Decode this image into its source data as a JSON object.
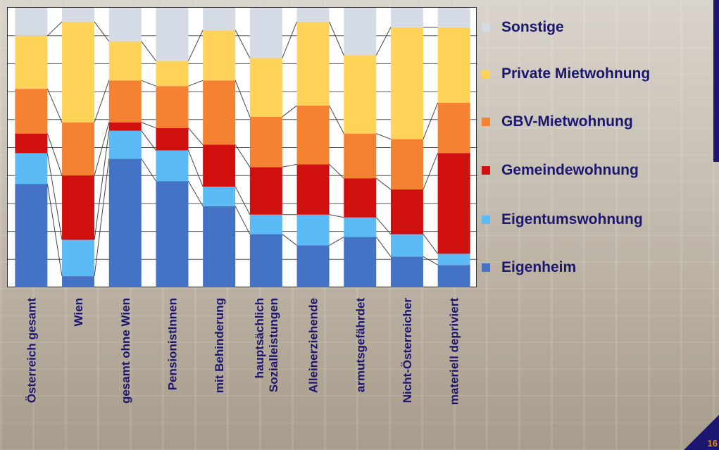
{
  "page_number": "16",
  "colors": {
    "Eigenheim": "#4472c4",
    "Eigentumswohnung": "#5cbbf5",
    "Gemeindewohnung": "#d00f0f",
    "GBV-Mietwohnung": "#f58232",
    "Private Mietwohnung": "#ffd357",
    "Sonstige": "#d4dbe5"
  },
  "legend": [
    {
      "label": "Sonstige",
      "color": "#d4dbe5"
    },
    {
      "label": "Private Mietwohnung",
      "color": "#ffd357"
    },
    {
      "label": "GBV-Mietwohnung",
      "color": "#f58232"
    },
    {
      "label": "Gemeindewohnung",
      "color": "#d00f0f"
    },
    {
      "label": "Eigentumswohnung",
      "color": "#5cbbf5"
    },
    {
      "label": "Eigenheim",
      "color": "#4472c4"
    }
  ],
  "chart_data": {
    "type": "bar",
    "stacked": true,
    "categories": [
      "Österreich gesamt",
      "Wien",
      "gesamt ohne Wien",
      "PensionistInnen",
      "mit Behinderung",
      "hauptsächlich Sozialleistungen",
      "Alleinerziehende",
      "armutsgefährdet",
      "Nicht-Österreicher",
      "materiell depriviert"
    ],
    "series": [
      {
        "name": "Eigenheim",
        "values": [
          37,
          4,
          46,
          38,
          29,
          19,
          15,
          18,
          11,
          8
        ]
      },
      {
        "name": "Eigentumswohnung",
        "values": [
          11,
          13,
          10,
          11,
          7,
          7,
          11,
          7,
          8,
          4
        ]
      },
      {
        "name": "Gemeindewohnung",
        "values": [
          7,
          23,
          3,
          8,
          15,
          17,
          18,
          14,
          16,
          36
        ]
      },
      {
        "name": "GBV-Mietwohnung",
        "values": [
          16,
          19,
          15,
          15,
          23,
          18,
          21,
          16,
          18,
          18
        ]
      },
      {
        "name": "Private Mietwohnung",
        "values": [
          19,
          36,
          14,
          9,
          18,
          21,
          30,
          28,
          40,
          27
        ]
      },
      {
        "name": "Sonstige",
        "values": [
          10,
          5,
          12,
          19,
          8,
          18,
          5,
          17,
          7,
          7
        ]
      }
    ],
    "ylim": [
      0,
      100
    ],
    "grid": true,
    "legend_position": "right"
  }
}
